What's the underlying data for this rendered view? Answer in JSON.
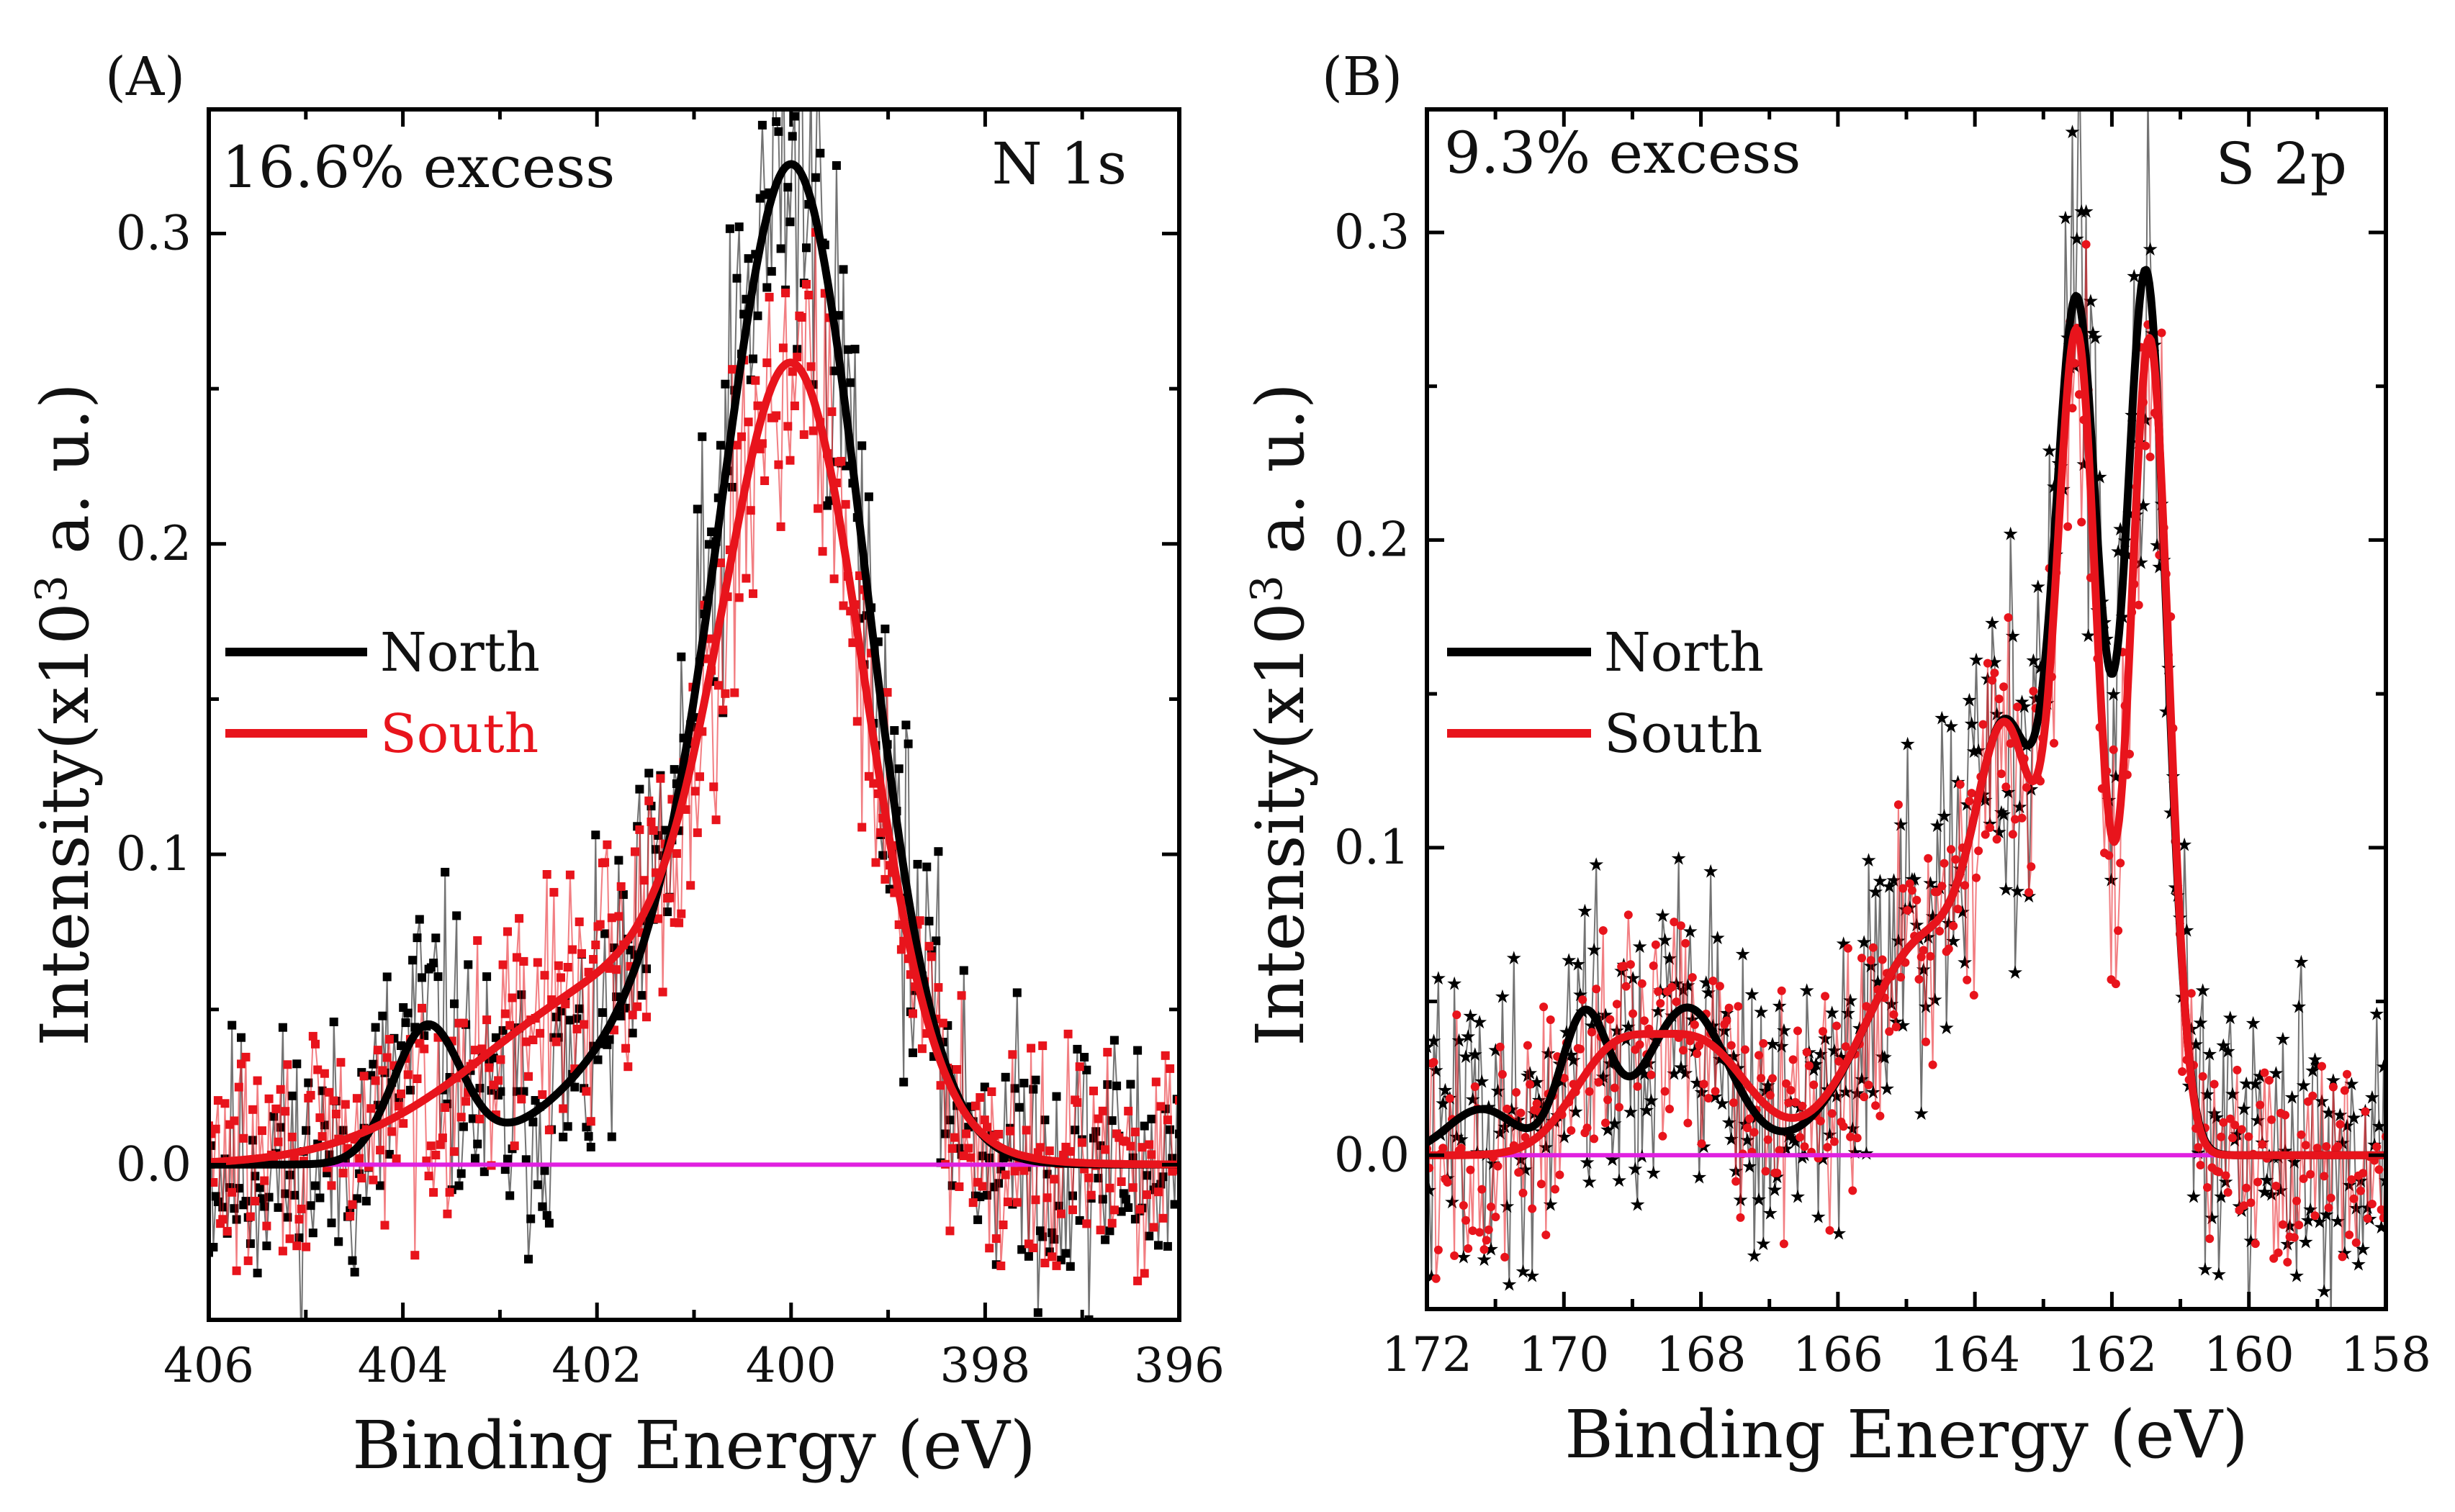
{
  "chart_data": [
    {
      "type": "scatter",
      "panel_label": "(A)",
      "annotation": "16.6% excess",
      "peak_label": "N 1s",
      "xlabel": "Binding Energy (eV)",
      "ylabel_main": "Intensity(x10",
      "ylabel_sup": "3",
      "ylabel_end": " a. u.)",
      "x_reversed": true,
      "xlim": [
        406,
        396
      ],
      "ylim": [
        -0.05,
        0.34
      ],
      "xticks": [
        406,
        404,
        402,
        400,
        398,
        396
      ],
      "xtick_labels": [
        "406",
        "404",
        "402",
        "400",
        "398",
        "396"
      ],
      "yticks": [
        0.0,
        0.1,
        0.2,
        0.3
      ],
      "ytick_labels": [
        "0.0",
        "0.1",
        "0.2",
        "0.3"
      ],
      "legend": [
        {
          "name": "North",
          "color": "#000000"
        },
        {
          "name": "South",
          "color": "#e8141c"
        }
      ],
      "baseline": {
        "y": 0.0,
        "color": "#e020e0"
      },
      "series": [
        {
          "name": "North",
          "color": "#000000",
          "marker": "square",
          "fit_components": [
            {
              "center": 399.95,
              "height": 0.29,
              "sigma": 0.72
            },
            {
              "center": 401.0,
              "height": 0.05,
              "sigma": 1.1
            },
            {
              "center": 403.75,
              "height": 0.043,
              "sigma": 0.35
            }
          ],
          "fit_offset": 0.0,
          "noise": 0.028,
          "seed": 11
        },
        {
          "name": "South",
          "color": "#e8141c",
          "marker": "square",
          "fit_components": [
            {
              "center": 399.95,
              "height": 0.225,
              "sigma": 0.72
            },
            {
              "center": 401.6,
              "height": 0.06,
              "sigma": 1.5
            }
          ],
          "fit_offset": 0.0,
          "noise": 0.022,
          "seed": 29
        }
      ]
    },
    {
      "type": "scatter",
      "panel_label": "(B)",
      "annotation": "9.3% excess",
      "peak_label": "S 2p",
      "xlabel": "Binding Energy (eV)",
      "ylabel_main": "Intensity(x10",
      "ylabel_sup": "3",
      "ylabel_end": " a. u.)",
      "x_reversed": true,
      "xlim": [
        172,
        158
      ],
      "ylim": [
        -0.05,
        0.34
      ],
      "xticks": [
        172,
        170,
        168,
        166,
        164,
        162,
        160,
        158
      ],
      "xtick_labels": [
        "172",
        "170",
        "168",
        "166",
        "164",
        "162",
        "160",
        "158"
      ],
      "yticks": [
        0.0,
        0.1,
        0.2,
        0.3
      ],
      "ytick_labels": [
        "0.0",
        "0.1",
        "0.2",
        "0.3"
      ],
      "legend": [
        {
          "name": "North",
          "color": "#000000"
        },
        {
          "name": "South",
          "color": "#e8141c"
        }
      ],
      "baseline": {
        "y": 0.0,
        "color": "#e020e0"
      },
      "series": [
        {
          "name": "North",
          "color": "#000000",
          "marker": "star",
          "fit_components": [
            {
              "center": 162.5,
              "height": 0.265,
              "sigma": 0.33
            },
            {
              "center": 161.5,
              "height": 0.285,
              "sigma": 0.3
            },
            {
              "center": 163.5,
              "height": 0.11,
              "sigma": 0.45
            },
            {
              "center": 164.7,
              "height": 0.07,
              "sigma": 0.9
            },
            {
              "center": 169.7,
              "height": 0.045,
              "sigma": 0.35
            },
            {
              "center": 168.2,
              "height": 0.048,
              "sigma": 0.6
            },
            {
              "center": 171.2,
              "height": 0.015,
              "sigma": 0.5
            }
          ],
          "fit_offset": 0.0,
          "noise": 0.03,
          "seed": 41
        },
        {
          "name": "South",
          "color": "#e8141c",
          "marker": "circle",
          "fit_components": [
            {
              "center": 162.5,
              "height": 0.255,
              "sigma": 0.3
            },
            {
              "center": 161.45,
              "height": 0.265,
              "sigma": 0.28
            },
            {
              "center": 163.5,
              "height": 0.11,
              "sigma": 0.45
            },
            {
              "center": 164.7,
              "height": 0.07,
              "sigma": 0.9
            },
            {
              "center": 169.3,
              "height": 0.03,
              "sigma": 0.6
            },
            {
              "center": 168.0,
              "height": 0.035,
              "sigma": 0.7
            }
          ],
          "fit_offset": 0.0,
          "noise": 0.024,
          "seed": 57
        }
      ]
    }
  ]
}
